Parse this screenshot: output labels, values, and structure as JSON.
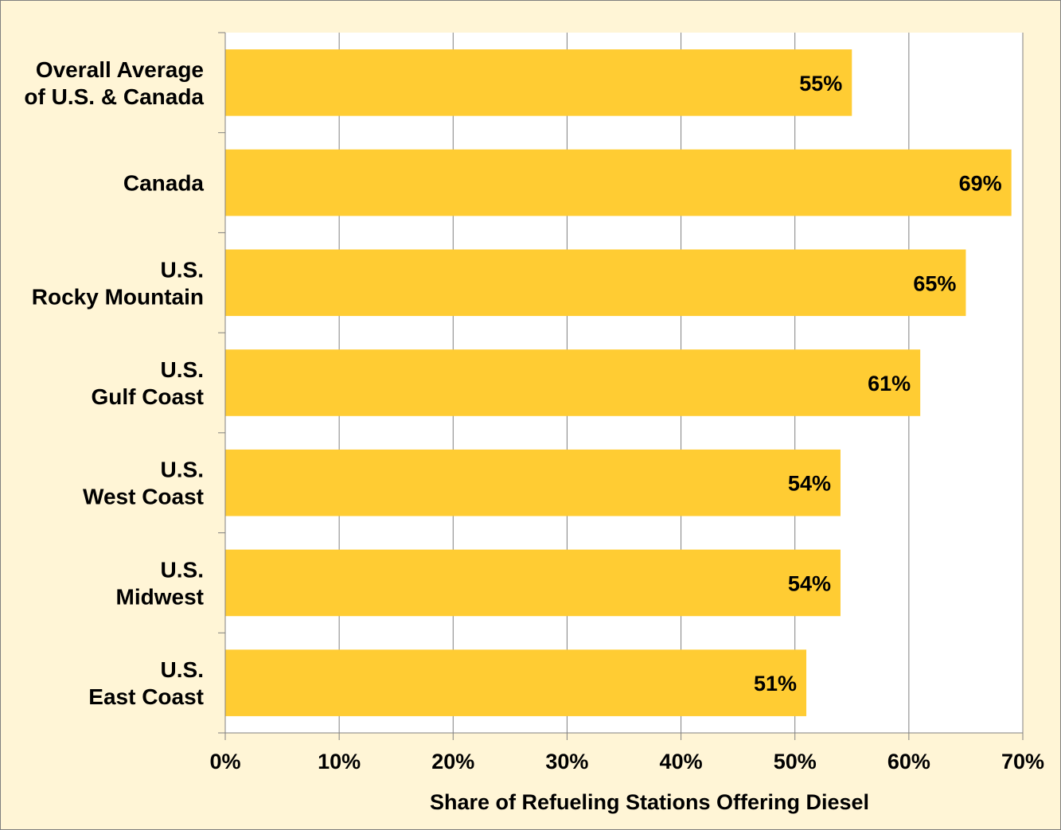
{
  "chart_data": {
    "type": "bar",
    "orientation": "horizontal",
    "categories": [
      [
        "Overall Average",
        "of U.S. & Canada"
      ],
      [
        "Canada"
      ],
      [
        "U.S.",
        "Rocky Mountain"
      ],
      [
        "U.S.",
        "Gulf Coast"
      ],
      [
        "U.S.",
        "West Coast"
      ],
      [
        "U.S.",
        "Midwest"
      ],
      [
        "U.S.",
        "East Coast"
      ]
    ],
    "values": [
      55,
      69,
      65,
      61,
      54,
      54,
      51
    ],
    "data_labels": [
      "55%",
      "69%",
      "65%",
      "61%",
      "54%",
      "54%",
      "51%"
    ],
    "xlabel": "Share of Refueling Stations Offering Diesel",
    "xlim": [
      0,
      70
    ],
    "x_ticks": [
      "0%",
      "10%",
      "20%",
      "30%",
      "40%",
      "50%",
      "60%",
      "70%"
    ],
    "grid": "vertical",
    "legend": "none"
  },
  "colors": {
    "bar": "#ffcc33",
    "background": "#fff5d6",
    "plot_area": "#ffffff",
    "gridline": "#808080"
  }
}
